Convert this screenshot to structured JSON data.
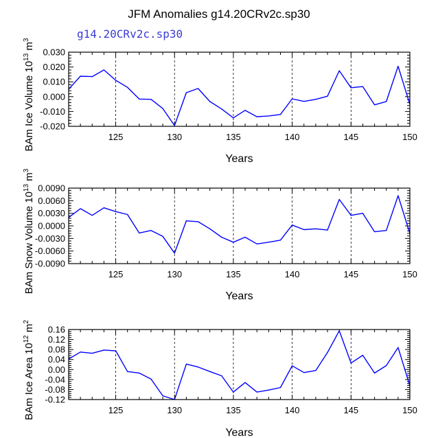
{
  "title": "JFM Anomalies g14.20CRv2c.sp30",
  "subtitle": "g14.20CRv2c.sp30",
  "colors": {
    "line": "#0000ff",
    "axis": "#000000",
    "grid": "#000000",
    "subtitle": "#3b3bd6"
  },
  "chart_data": [
    {
      "type": "line",
      "xlabel": "Years",
      "ylabel_main": "BAm Ice Volume 10",
      "ylabel_exp": "13",
      "ylabel_unit": " m",
      "ylabel_unit_exp": "3",
      "xlim": [
        121,
        150
      ],
      "ylim": [
        -0.02,
        0.03
      ],
      "x_ticks": [
        125,
        130,
        135,
        140,
        145,
        150
      ],
      "x_tick_labels": [
        "125",
        "130",
        "135",
        "140",
        "145",
        "150"
      ],
      "y_ticks": [
        -0.02,
        -0.01,
        0.0,
        0.01,
        0.02,
        0.03
      ],
      "y_tick_labels": [
        "-0.020",
        "-0.010",
        "0.000",
        "0.010",
        "0.020",
        "0.030"
      ],
      "grid": "vertical dashed at major x ticks",
      "x": [
        121,
        122,
        123,
        124,
        125,
        126,
        127,
        128,
        129,
        130,
        131,
        132,
        133,
        134,
        135,
        136,
        137,
        138,
        139,
        140,
        141,
        142,
        143,
        144,
        145,
        146,
        147,
        148,
        149,
        150
      ],
      "values": [
        0.005,
        0.0138,
        0.0135,
        0.018,
        0.011,
        0.0063,
        -0.0016,
        -0.0018,
        -0.008,
        -0.0195,
        0.0027,
        0.0055,
        -0.0033,
        -0.0083,
        -0.0143,
        -0.0092,
        -0.0135,
        -0.013,
        -0.012,
        -0.0015,
        -0.0032,
        -0.0018,
        0.0003,
        0.0175,
        0.006,
        0.0068,
        -0.0055,
        -0.0033,
        0.0205,
        -0.0052
      ]
    },
    {
      "type": "line",
      "xlabel": "Years",
      "ylabel_main": "BAm Snow Volume 10",
      "ylabel_exp": "13",
      "ylabel_unit": " m",
      "ylabel_unit_exp": "3",
      "xlim": [
        121,
        150
      ],
      "ylim": [
        -0.009,
        0.009
      ],
      "x_ticks": [
        125,
        130,
        135,
        140,
        145,
        150
      ],
      "x_tick_labels": [
        "125",
        "130",
        "135",
        "140",
        "145",
        "150"
      ],
      "y_ticks": [
        -0.009,
        -0.006,
        -0.003,
        0.0,
        0.003,
        0.006,
        0.009
      ],
      "y_tick_labels": [
        "-0.0090",
        "-0.0060",
        "-0.0030",
        "0.0000",
        "0.0030",
        "0.0060",
        "0.0090"
      ],
      "grid": "vertical dashed at major x ticks",
      "x": [
        121,
        122,
        123,
        124,
        125,
        126,
        127,
        128,
        129,
        130,
        131,
        132,
        133,
        134,
        135,
        136,
        137,
        138,
        139,
        140,
        141,
        142,
        143,
        144,
        145,
        146,
        147,
        148,
        149,
        150
      ],
      "values": [
        0.002,
        0.0041,
        0.0025,
        0.0043,
        0.0034,
        0.0027,
        -0.0017,
        -0.0011,
        -0.0025,
        -0.0065,
        0.0012,
        0.001,
        -0.0007,
        -0.0027,
        -0.0039,
        -0.0027,
        -0.0043,
        -0.0039,
        -0.0034,
        0.0002,
        -0.0009,
        -0.0007,
        -0.001,
        0.0063,
        0.0025,
        0.003,
        -0.0014,
        -0.0011,
        0.0072,
        -0.0018
      ]
    },
    {
      "type": "line",
      "xlabel": "Years",
      "ylabel_main": "BAm Ice Area 10",
      "ylabel_exp": "12",
      "ylabel_unit": " m",
      "ylabel_unit_exp": "2",
      "xlim": [
        121,
        150
      ],
      "ylim": [
        -0.12,
        0.16
      ],
      "x_ticks": [
        125,
        130,
        135,
        140,
        145,
        150
      ],
      "x_tick_labels": [
        "125",
        "130",
        "135",
        "140",
        "145",
        "150"
      ],
      "y_ticks": [
        -0.12,
        -0.08,
        -0.04,
        0.0,
        0.04,
        0.08,
        0.12,
        0.16
      ],
      "y_tick_labels": [
        "-0.12",
        "-0.08",
        "-0.04",
        "0.00",
        "0.04",
        "0.08",
        "0.12",
        "0.16"
      ],
      "grid": "vertical dashed at major x ticks",
      "x": [
        121,
        122,
        123,
        124,
        125,
        126,
        127,
        128,
        129,
        130,
        131,
        132,
        133,
        134,
        135,
        136,
        137,
        138,
        139,
        140,
        141,
        142,
        143,
        144,
        145,
        146,
        147,
        148,
        149,
        150
      ],
      "values": [
        0.042,
        0.07,
        0.065,
        0.078,
        0.075,
        -0.008,
        -0.014,
        -0.038,
        -0.105,
        -0.12,
        0.022,
        0.01,
        -0.008,
        -0.025,
        -0.09,
        -0.052,
        -0.09,
        -0.082,
        -0.072,
        0.015,
        -0.012,
        -0.004,
        0.068,
        0.155,
        0.026,
        0.057,
        -0.014,
        0.016,
        0.088,
        -0.065
      ]
    }
  ]
}
